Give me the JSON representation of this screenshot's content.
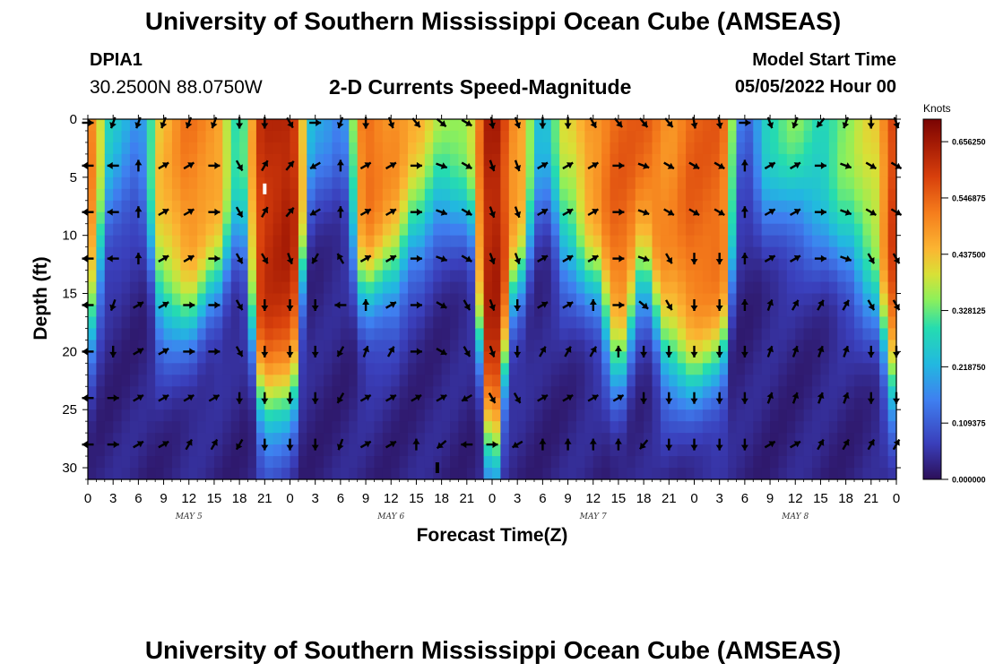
{
  "header": {
    "title": "University of Southern Mississippi Ocean Cube (AMSEAS)",
    "station_id": "DPIA1",
    "coords": "30.2500N  88.0750W",
    "product": "2-D Currents Speed-Magnitude",
    "start_label": "Model Start Time",
    "start_value": "05/05/2022 Hour 00"
  },
  "footer": {
    "title": "University of Southern Mississippi Ocean Cube (AMSEAS)"
  },
  "chart_data": {
    "type": "heatmap",
    "title": "2-D Currents Speed-Magnitude",
    "xlabel": "Forecast Time(Z)",
    "ylabel": "Depth (ft)",
    "x_tick_labels": [
      "0",
      "3",
      "6",
      "9",
      "12",
      "15",
      "18",
      "21",
      "0",
      "3",
      "6",
      "9",
      "12",
      "15",
      "18",
      "21",
      "0",
      "3",
      "6",
      "9",
      "12",
      "15",
      "18",
      "21",
      "0",
      "3",
      "6",
      "9",
      "12",
      "15",
      "18",
      "21",
      "0"
    ],
    "x_range_hours": [
      0,
      96
    ],
    "day_labels": [
      {
        "label": "MAY 5",
        "hour": 12
      },
      {
        "label": "MAY 6",
        "hour": 36
      },
      {
        "label": "MAY 7",
        "hour": 60
      },
      {
        "label": "MAY 8",
        "hour": 84
      }
    ],
    "y_ticks": [
      0,
      5,
      10,
      15,
      20,
      25,
      30
    ],
    "y_range_ft": [
      0,
      31
    ],
    "colorbar": {
      "unit": "Knots",
      "min": 0,
      "max": 0.7,
      "tick_labels": [
        "0.656250",
        "0.546875",
        "0.437500",
        "0.328125",
        "0.218750",
        "0.109375",
        "0.000000"
      ],
      "tick_values": [
        0.65625,
        0.546875,
        0.4375,
        0.328125,
        0.21875,
        0.109375,
        0.0
      ]
    },
    "columns": {
      "hours": [
        0,
        3,
        6,
        9,
        12,
        15,
        18,
        21,
        24,
        27,
        30,
        33,
        36,
        39,
        42,
        45,
        48,
        51,
        54,
        57,
        60,
        63,
        66,
        69,
        72,
        75,
        78,
        81,
        84,
        87,
        90,
        93,
        96
      ],
      "surface_speed_knots": [
        0.52,
        0.25,
        0.2,
        0.45,
        0.52,
        0.5,
        0.3,
        0.62,
        0.64,
        0.25,
        0.15,
        0.55,
        0.5,
        0.45,
        0.4,
        0.38,
        0.65,
        0.5,
        0.25,
        0.4,
        0.5,
        0.55,
        0.55,
        0.5,
        0.55,
        0.55,
        0.15,
        0.3,
        0.35,
        0.3,
        0.35,
        0.4,
        0.6
      ],
      "decay_depth_ft": [
        18,
        8,
        6,
        17,
        17,
        14,
        10,
        25,
        24,
        4,
        6,
        15,
        14,
        10,
        7,
        8,
        29,
        14,
        6,
        12,
        14,
        21,
        13,
        21,
        22,
        21,
        4,
        8,
        8,
        10,
        12,
        15,
        23
      ]
    },
    "vector_depths_ft": [
      0,
      4,
      8,
      12,
      16,
      20,
      24,
      28
    ],
    "vector_directions_deg": [
      [
        90,
        200,
        200,
        200,
        200,
        200,
        180,
        180,
        150,
        90,
        200,
        180,
        160,
        140,
        130,
        120,
        170,
        160,
        180,
        180,
        150,
        140,
        140,
        140,
        170,
        170,
        90,
        160,
        200,
        220,
        200,
        180,
        160
      ],
      [
        270,
        270,
        0,
        60,
        60,
        90,
        150,
        30,
        40,
        240,
        0,
        60,
        60,
        90,
        110,
        120,
        160,
        160,
        60,
        60,
        60,
        90,
        110,
        120,
        120,
        120,
        0,
        60,
        60,
        90,
        110,
        120,
        120
      ],
      [
        270,
        270,
        0,
        60,
        60,
        90,
        150,
        30,
        40,
        240,
        0,
        60,
        60,
        90,
        110,
        120,
        160,
        160,
        60,
        60,
        60,
        90,
        110,
        120,
        120,
        120,
        0,
        60,
        60,
        90,
        110,
        120,
        120
      ],
      [
        270,
        270,
        0,
        60,
        60,
        90,
        150,
        150,
        160,
        210,
        330,
        60,
        60,
        90,
        110,
        120,
        160,
        160,
        60,
        60,
        60,
        90,
        110,
        150,
        180,
        180,
        0,
        60,
        60,
        90,
        110,
        150,
        150
      ],
      [
        270,
        200,
        60,
        60,
        90,
        90,
        150,
        180,
        180,
        180,
        270,
        0,
        60,
        90,
        120,
        150,
        160,
        180,
        60,
        60,
        0,
        90,
        130,
        150,
        180,
        180,
        0,
        20,
        30,
        30,
        30,
        150,
        150
      ],
      [
        270,
        180,
        60,
        60,
        90,
        90,
        150,
        180,
        180,
        180,
        210,
        20,
        30,
        90,
        120,
        150,
        160,
        180,
        30,
        30,
        30,
        0,
        180,
        180,
        180,
        180,
        180,
        20,
        20,
        20,
        20,
        180,
        180
      ],
      [
        270,
        90,
        60,
        60,
        60,
        60,
        180,
        180,
        180,
        180,
        210,
        60,
        60,
        60,
        60,
        240,
        150,
        150,
        60,
        60,
        60,
        60,
        180,
        180,
        180,
        180,
        180,
        20,
        20,
        20,
        20,
        180,
        180
      ],
      [
        270,
        90,
        60,
        60,
        30,
        30,
        210,
        180,
        180,
        180,
        200,
        60,
        60,
        0,
        230,
        270,
        90,
        240,
        0,
        0,
        0,
        0,
        220,
        180,
        180,
        180,
        180,
        60,
        60,
        30,
        30,
        30,
        30
      ]
    ],
    "markers": [
      {
        "hour": 21,
        "depth_ft": 6,
        "color": "#ffffff"
      },
      {
        "hour": 41.5,
        "depth_ft": 30,
        "color": "#000000"
      }
    ]
  }
}
